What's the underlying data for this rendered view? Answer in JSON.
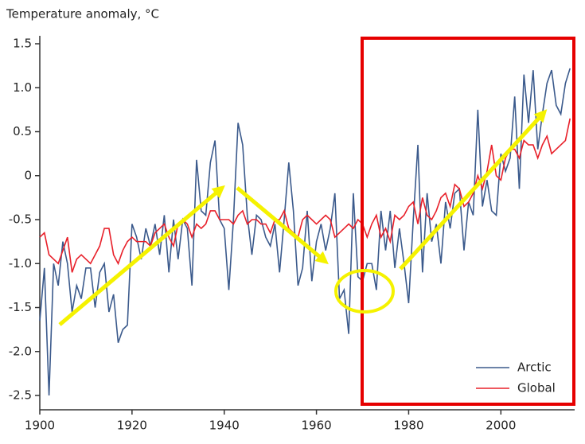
{
  "chart_data": {
    "type": "line",
    "ylabel": "Temperature anomaly, °C",
    "x": [
      1900,
      1901,
      1902,
      1903,
      1904,
      1905,
      1906,
      1907,
      1908,
      1909,
      1910,
      1911,
      1912,
      1913,
      1914,
      1915,
      1916,
      1917,
      1918,
      1919,
      1920,
      1921,
      1922,
      1923,
      1924,
      1925,
      1926,
      1927,
      1928,
      1929,
      1930,
      1931,
      1932,
      1933,
      1934,
      1935,
      1936,
      1937,
      1938,
      1939,
      1940,
      1941,
      1942,
      1943,
      1944,
      1945,
      1946,
      1947,
      1948,
      1949,
      1950,
      1951,
      1952,
      1953,
      1954,
      1955,
      1956,
      1957,
      1958,
      1959,
      1960,
      1961,
      1962,
      1963,
      1964,
      1965,
      1966,
      1967,
      1968,
      1969,
      1970,
      1971,
      1972,
      1973,
      1974,
      1975,
      1976,
      1977,
      1978,
      1979,
      1980,
      1981,
      1982,
      1983,
      1984,
      1985,
      1986,
      1987,
      1988,
      1989,
      1990,
      1991,
      1992,
      1993,
      1994,
      1995,
      1996,
      1997,
      1998,
      1999,
      2000,
      2001,
      2002,
      2003,
      2004,
      2005,
      2006,
      2007,
      2008,
      2009,
      2010,
      2011,
      2012,
      2013,
      2014,
      2015
    ],
    "series": [
      {
        "name": "Arctic",
        "color": "#3b5a8c",
        "values": [
          -1.65,
          -1.05,
          -2.5,
          -1.0,
          -1.25,
          -0.75,
          -1.0,
          -1.55,
          -1.25,
          -1.4,
          -1.05,
          -1.05,
          -1.5,
          -1.1,
          -1.0,
          -1.55,
          -1.35,
          -1.9,
          -1.75,
          -1.7,
          -0.55,
          -0.7,
          -0.95,
          -0.6,
          -0.8,
          -0.55,
          -0.9,
          -0.45,
          -1.1,
          -0.5,
          -0.95,
          -0.5,
          -0.6,
          -1.25,
          0.18,
          -0.4,
          -0.45,
          0.15,
          0.4,
          -0.5,
          -0.6,
          -1.3,
          -0.5,
          0.6,
          0.35,
          -0.45,
          -0.9,
          -0.45,
          -0.5,
          -0.7,
          -0.8,
          -0.55,
          -1.1,
          -0.5,
          0.15,
          -0.4,
          -1.25,
          -1.05,
          -0.4,
          -1.2,
          -0.75,
          -0.55,
          -0.85,
          -0.6,
          -0.2,
          -1.4,
          -1.3,
          -1.8,
          -0.2,
          -1.15,
          -1.2,
          -1.0,
          -1.0,
          -1.3,
          -0.4,
          -0.85,
          -0.4,
          -1.05,
          -0.6,
          -1.0,
          -1.45,
          -0.5,
          0.35,
          -1.1,
          -0.2,
          -0.75,
          -0.55,
          -1.0,
          -0.3,
          -0.6,
          -0.2,
          -0.15,
          -0.85,
          -0.3,
          -0.45,
          0.75,
          -0.35,
          -0.05,
          -0.4,
          -0.45,
          0.25,
          0.05,
          0.2,
          0.9,
          -0.15,
          1.15,
          0.6,
          1.2,
          0.3,
          0.7,
          1.05,
          1.2,
          0.8,
          0.7,
          1.05,
          1.22
        ]
      },
      {
        "name": "Global",
        "color": "#e8202a",
        "values": [
          -0.7,
          -0.65,
          -0.9,
          -0.95,
          -1.0,
          -0.85,
          -0.7,
          -1.1,
          -0.95,
          -0.9,
          -0.95,
          -1.0,
          -0.9,
          -0.8,
          -0.6,
          -0.6,
          -0.9,
          -1.0,
          -0.85,
          -0.75,
          -0.7,
          -0.75,
          -0.75,
          -0.75,
          -0.8,
          -0.65,
          -0.6,
          -0.55,
          -0.7,
          -0.8,
          -0.55,
          -0.5,
          -0.55,
          -0.7,
          -0.55,
          -0.6,
          -0.55,
          -0.4,
          -0.4,
          -0.5,
          -0.5,
          -0.5,
          -0.55,
          -0.45,
          -0.4,
          -0.55,
          -0.5,
          -0.5,
          -0.55,
          -0.55,
          -0.65,
          -0.5,
          -0.5,
          -0.4,
          -0.6,
          -0.65,
          -0.7,
          -0.5,
          -0.45,
          -0.5,
          -0.55,
          -0.5,
          -0.45,
          -0.5,
          -0.7,
          -0.65,
          -0.6,
          -0.55,
          -0.6,
          -0.5,
          -0.55,
          -0.7,
          -0.55,
          -0.45,
          -0.7,
          -0.6,
          -0.75,
          -0.45,
          -0.5,
          -0.45,
          -0.35,
          -0.3,
          -0.55,
          -0.25,
          -0.45,
          -0.5,
          -0.4,
          -0.25,
          -0.2,
          -0.35,
          -0.1,
          -0.15,
          -0.35,
          -0.3,
          -0.2,
          0.0,
          -0.15,
          0.05,
          0.35,
          0.0,
          -0.05,
          0.2,
          0.3,
          0.3,
          0.2,
          0.4,
          0.35,
          0.35,
          0.2,
          0.35,
          0.45,
          0.25,
          0.3,
          0.35,
          0.4,
          0.65
        ]
      }
    ],
    "xlim": [
      1900,
      2016
    ],
    "xticks": [
      1900,
      1920,
      1940,
      1960,
      1980,
      2000
    ],
    "ylim": [
      -2.5,
      1.5
    ],
    "yticks": [
      -2.5,
      {
        "value": -2,
        "label": "-2.0"
      },
      {
        "value": -1.5,
        "label": "-1.5"
      },
      {
        "value": -1,
        "label": "-1.0"
      },
      -0.5,
      0,
      0.5,
      {
        "value": 1,
        "label": "1.0"
      },
      1.5
    ],
    "legend": "lower right",
    "grid": false
  }
}
